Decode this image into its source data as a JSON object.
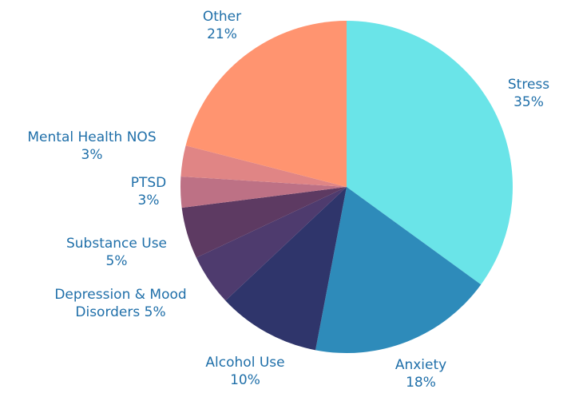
{
  "chart_data": {
    "type": "pie",
    "categories": [
      "Stress",
      "Anxiety",
      "Alcohol Use",
      "Depression & Mood Disorders",
      "Substance Use",
      "PTSD",
      "Mental Health NOS",
      "Other"
    ],
    "values": [
      35,
      18,
      10,
      5,
      5,
      3,
      3,
      21
    ],
    "value_labels": [
      "35%",
      "18%",
      "10%",
      "5%",
      "5%",
      "3%",
      "3%",
      "21%"
    ],
    "colors": [
      "#6ae4e8",
      "#2e8bba",
      "#2f356b",
      "#4e3b6e",
      "#5d3a62",
      "#bd7185",
      "#e08585",
      "#ff9470"
    ]
  }
}
